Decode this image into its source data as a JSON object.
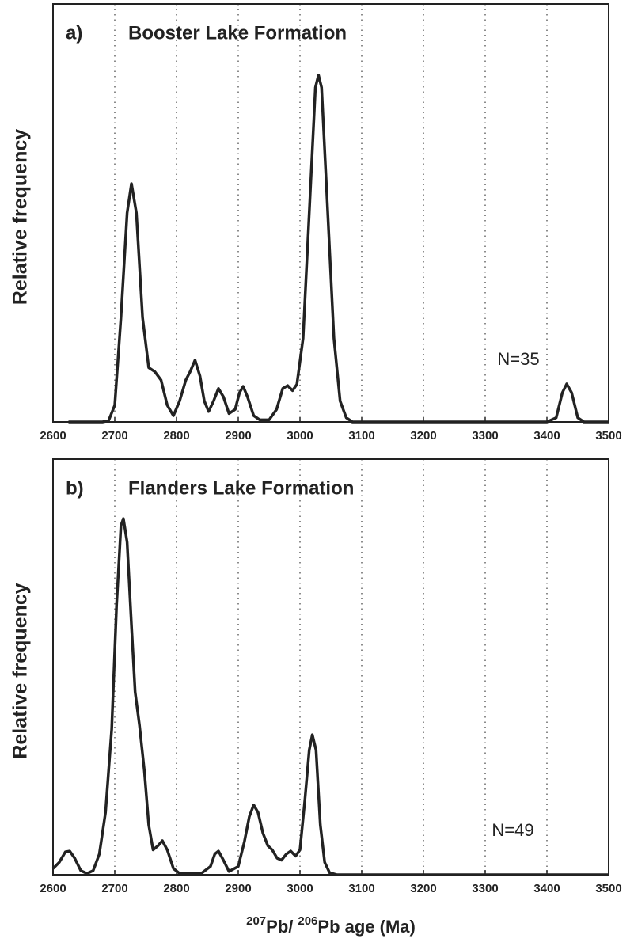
{
  "chart_data": [
    {
      "type": "line",
      "panel_label": "a)",
      "title": "Booster Lake Formation",
      "ylabel": "Relative frequency",
      "annotation": "N=35",
      "x": [
        2625,
        2680,
        2690,
        2700,
        2710,
        2720,
        2727,
        2735,
        2745,
        2755,
        2765,
        2775,
        2785,
        2795,
        2805,
        2815,
        2822,
        2830,
        2838,
        2845,
        2852,
        2860,
        2868,
        2876,
        2885,
        2895,
        2902,
        2908,
        2915,
        2925,
        2935,
        2950,
        2962,
        2972,
        2980,
        2988,
        2995,
        3005,
        3015,
        3025,
        3030,
        3035,
        3045,
        3055,
        3065,
        3075,
        3085,
        3400,
        3415,
        3425,
        3432,
        3440,
        3450,
        3460,
        3500
      ],
      "values": [
        0,
        0,
        0.3,
        4,
        25,
        50,
        57,
        50,
        25,
        13,
        12,
        10,
        4,
        1.5,
        5,
        10,
        12,
        14.8,
        11,
        5,
        2.5,
        5,
        8,
        6,
        2,
        3,
        7,
        8.5,
        6,
        1.5,
        0.5,
        0.5,
        3,
        8,
        8.7,
        7.5,
        9,
        20,
        50,
        80,
        83,
        80,
        50,
        20,
        5,
        1,
        0,
        0,
        1,
        7,
        9.1,
        7,
        1,
        0,
        0
      ],
      "color": "#222222",
      "xlim": [
        2600,
        3500
      ],
      "xticks": [
        2600,
        2700,
        2800,
        2900,
        3000,
        3100,
        3200,
        3300,
        3400,
        3500
      ],
      "ylim": [
        0,
        100
      ],
      "grid": true
    },
    {
      "type": "line",
      "panel_label": "b)",
      "title": "Flanders Lake Formation",
      "ylabel": "Relative frequency",
      "annotation": "N=49",
      "x": [
        2600,
        2610,
        2620,
        2627,
        2635,
        2645,
        2655,
        2665,
        2675,
        2685,
        2695,
        2703,
        2710,
        2714,
        2720,
        2727,
        2733,
        2740,
        2748,
        2755,
        2762,
        2770,
        2777,
        2785,
        2795,
        2805,
        2840,
        2855,
        2862,
        2868,
        2876,
        2885,
        2900,
        2910,
        2918,
        2925,
        2932,
        2940,
        2948,
        2955,
        2963,
        2970,
        2978,
        2985,
        2993,
        3000,
        3008,
        3015,
        3020,
        3026,
        3033,
        3040,
        3048,
        3060,
        3500
      ],
      "values": [
        1.5,
        3,
        5.5,
        5.7,
        4,
        1,
        0.3,
        1,
        5,
        15,
        35,
        65,
        84,
        85.7,
        80,
        60,
        44,
        36,
        25,
        12,
        6,
        7,
        8.2,
        6,
        1.5,
        0.3,
        0.3,
        2,
        5,
        5.7,
        3.5,
        0.8,
        2,
        8,
        14,
        16.8,
        15,
        10,
        7,
        6,
        4,
        3.5,
        5,
        5.7,
        4.5,
        6,
        18,
        30,
        33.7,
        30,
        12,
        3,
        0.5,
        0,
        0
      ],
      "color": "#222222",
      "xlim": [
        2600,
        3500
      ],
      "xticks": [
        2600,
        2700,
        2800,
        2900,
        3000,
        3100,
        3200,
        3300,
        3400,
        3500
      ],
      "ylim": [
        0,
        100
      ],
      "grid": true,
      "xlabel": {
        "sup1": "207",
        "text1": "Pb/",
        "sup2": "206",
        "text2": "Pb age (Ma)"
      }
    }
  ]
}
